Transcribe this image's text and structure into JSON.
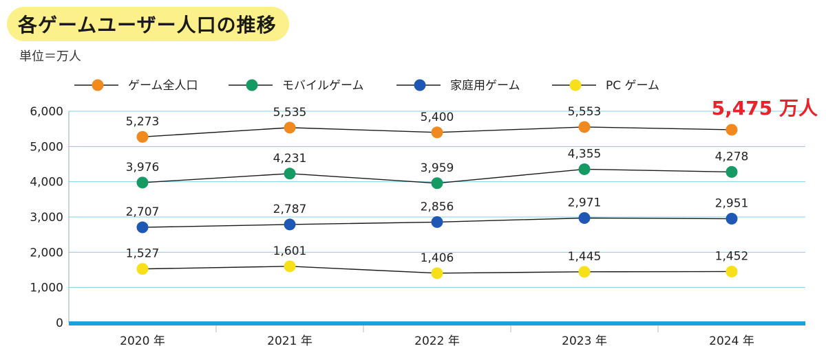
{
  "title": "各ゲームユーザー人口の推移",
  "unit": "単位＝万人",
  "callout": "5,475 万人",
  "colors": {
    "title_bg": "#fbf08a",
    "grid": "#7fd0e6",
    "baseline": "#1ba2dd",
    "callout": "#e8232a"
  },
  "chart_data": {
    "type": "line",
    "categories": [
      "2020 年",
      "2021 年",
      "2022 年",
      "2023 年",
      "2024 年"
    ],
    "ylim": [
      0,
      6000
    ],
    "y_ticks": [
      "0",
      "1,000",
      "2,000",
      "3,000",
      "4,000",
      "5,000",
      "6,000"
    ],
    "legend_position": "top",
    "grid": true,
    "series": [
      {
        "name": "ゲーム全人口",
        "color": "#f08a1e",
        "values": [
          5273,
          5535,
          5400,
          5553,
          5475
        ],
        "labels": [
          "5,273",
          "5,535",
          "5,400",
          "5,553",
          ""
        ]
      },
      {
        "name": "モバイルゲーム",
        "color": "#149a62",
        "values": [
          3976,
          4231,
          3959,
          4355,
          4278
        ],
        "labels": [
          "3,976",
          "4,231",
          "3,959",
          "4,355",
          "4,278"
        ]
      },
      {
        "name": "家庭用ゲーム",
        "color": "#1f57b5",
        "values": [
          2707,
          2787,
          2856,
          2971,
          2951
        ],
        "labels": [
          "2,707",
          "2,787",
          "2,856",
          "2,971",
          "2,951"
        ]
      },
      {
        "name": "PC ゲーム",
        "color": "#f7e01a",
        "values": [
          1527,
          1601,
          1406,
          1445,
          1452
        ],
        "labels": [
          "1,527",
          "1,601",
          "1,406",
          "1,445",
          "1,452"
        ]
      }
    ]
  }
}
